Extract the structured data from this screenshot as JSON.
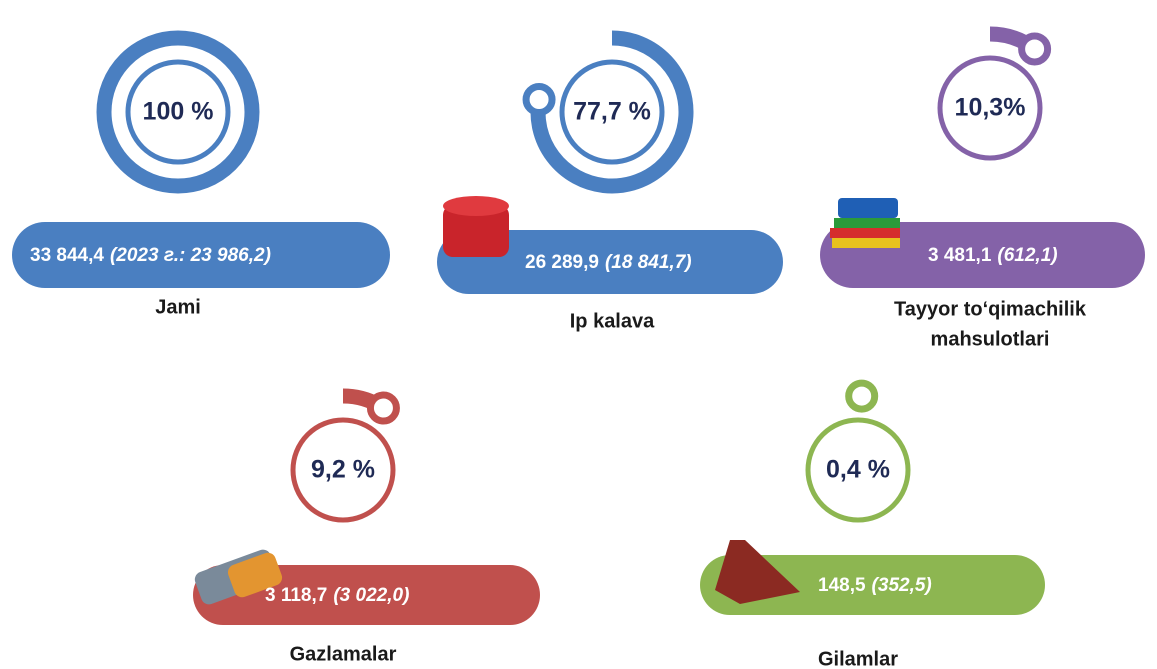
{
  "items": [
    {
      "percent": 100,
      "percent_label": "100 %",
      "value": "33 844,4",
      "prev": "(2023 г.: 23 986,2)",
      "label": [
        "Jami"
      ],
      "color": "#4a7fc1"
    },
    {
      "percent": 77.7,
      "percent_label": "77,7 %",
      "value": "26 289,9",
      "prev": "(18 841,7)",
      "label": [
        "Ip kalava"
      ],
      "color": "#4a7fc1"
    },
    {
      "percent": 10.3,
      "percent_label": "10,3%",
      "value": "3 481,1",
      "prev": "(612,1)",
      "label": [
        "Tayyor to‘qimachilik",
        "mahsulotlari"
      ],
      "color": "#8462a8"
    },
    {
      "percent": 9.2,
      "percent_label": "9,2 %",
      "value": "3 118,7",
      "prev": "(3 022,0)",
      "label": [
        "Gazlamalar"
      ],
      "color": "#c0504d"
    },
    {
      "percent": 0.4,
      "percent_label": "0,4 %",
      "value": "148,5",
      "prev": "(352,5)",
      "label": [
        "Gilamlar"
      ],
      "color": "#8db651"
    }
  ]
}
